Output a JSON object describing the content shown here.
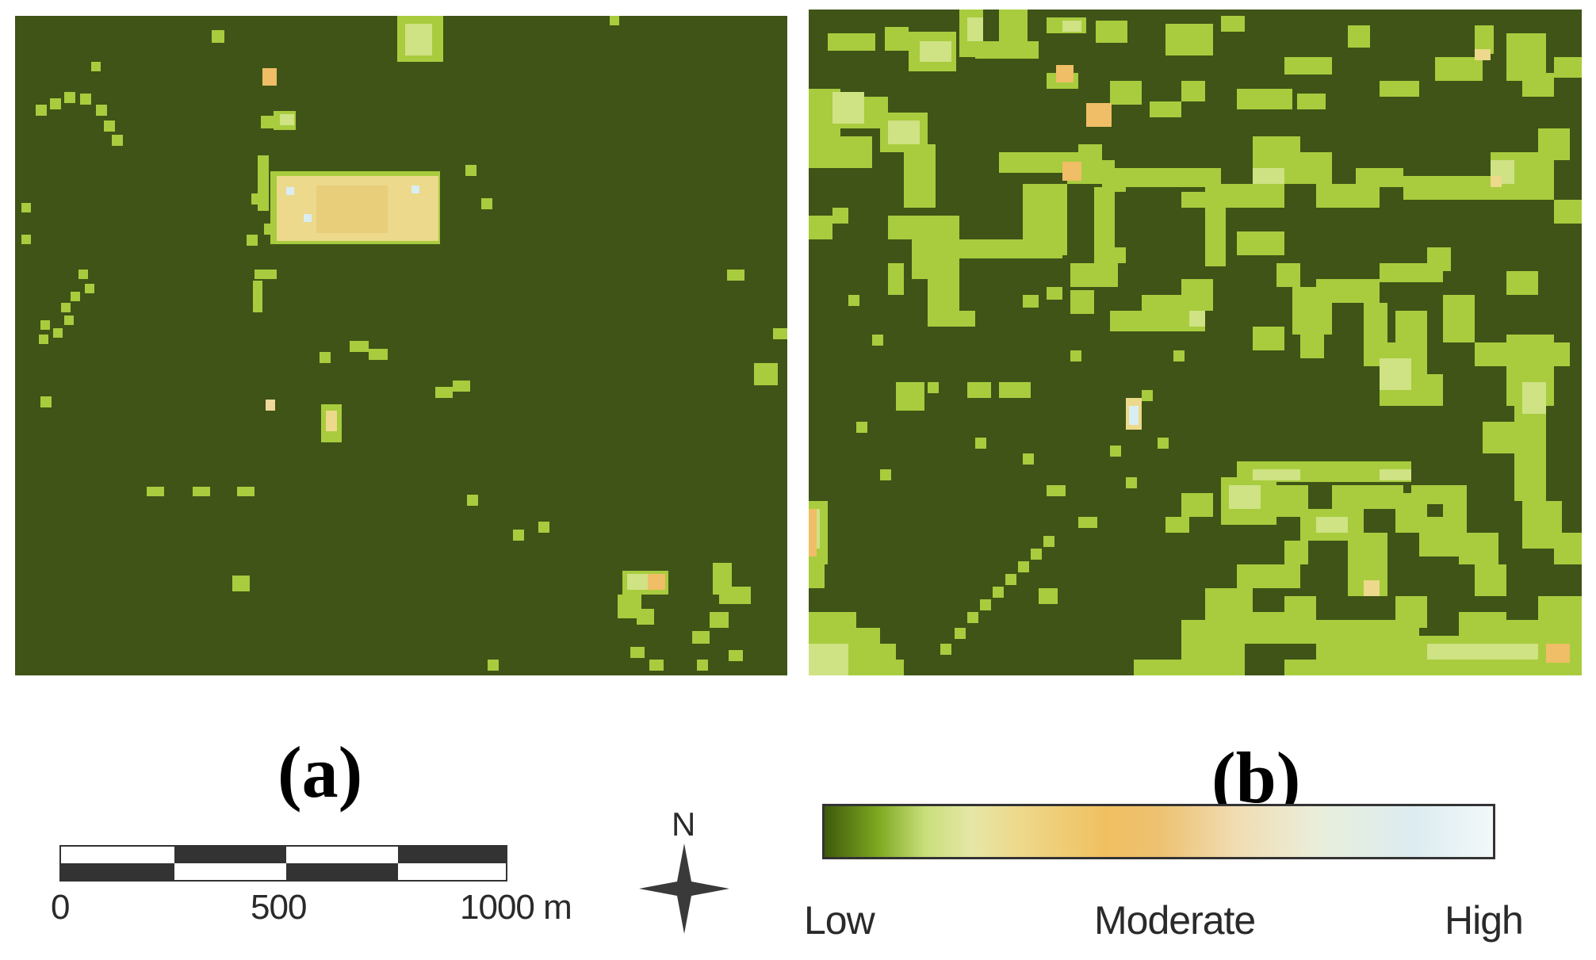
{
  "panels": [
    {
      "id": "a",
      "label": "(a)"
    },
    {
      "id": "b",
      "label": "(b)"
    }
  ],
  "scale_bar": {
    "ticks": [
      "0",
      "500",
      "1000 m"
    ]
  },
  "north_arrow": {
    "letter": "N",
    "icon": "north-arrow-icon"
  },
  "legend": {
    "low": "Low",
    "moderate": "Moderate",
    "high": "High"
  },
  "colors": {
    "background_low": "#3f5416",
    "light_green": "#a8cc3e",
    "pale_green": "#cfe284",
    "yellow": "#ecd98b",
    "orange": "#efbe66",
    "pale_blue": "#d8eef2"
  }
}
